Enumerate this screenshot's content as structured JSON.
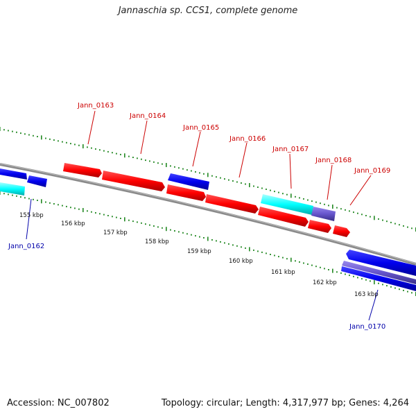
{
  "title": "Jannaschia sp. CCS1, complete genome",
  "accession": "Accession: NC_007802",
  "summary": "Topology: circular; Length: 4,317,977 bp; Genes: 4,264",
  "colors": {
    "forward_gene": "#ff0000",
    "reverse_gene": "#0000ee",
    "highlight_gene": "#00ffff",
    "pseudo_gene": "#6655cc",
    "backbone": "#888888",
    "tick": "#228822",
    "forward_label": "#cc0000",
    "reverse_label": "#0000aa"
  },
  "scale_labels": [
    "155 kbp",
    "156 kbp",
    "157 kbp",
    "158 kbp",
    "159 kbp",
    "160 kbp",
    "161 kbp",
    "162 kbp",
    "163 kbp"
  ],
  "gene_labels": [
    {
      "text": "Jann_0162",
      "strand": "reverse"
    },
    {
      "text": "Jann_0163",
      "strand": "forward"
    },
    {
      "text": "Jann_0164",
      "strand": "forward"
    },
    {
      "text": "Jann_0165",
      "strand": "forward"
    },
    {
      "text": "Jann_0166",
      "strand": "forward"
    },
    {
      "text": "Jann_0167",
      "strand": "forward"
    },
    {
      "text": "Jann_0168",
      "strand": "forward"
    },
    {
      "text": "Jann_0169",
      "strand": "forward"
    },
    {
      "text": "Jann_0170",
      "strand": "reverse"
    }
  ]
}
